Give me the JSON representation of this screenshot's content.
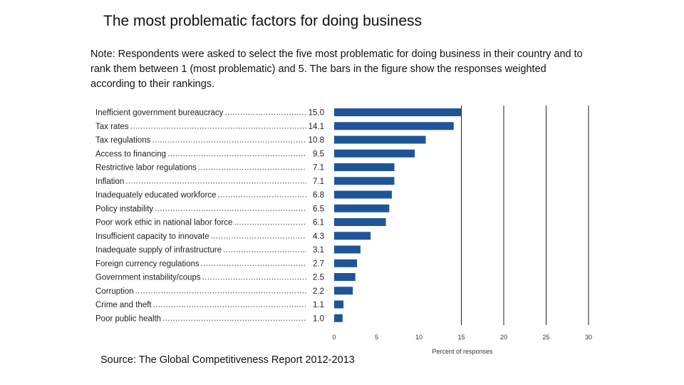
{
  "slide": {
    "title": "The most problematic factors for doing business",
    "note": "Note: Respondents were asked to select the five most problematic for doing business in their country and to rank them between 1 (most problematic) and 5. The bars in the figure show the responses weighted according to their rankings.",
    "source": "Source: The Global Competitiveness Report 2012-2013"
  },
  "chart_data": {
    "type": "bar",
    "orientation": "horizontal",
    "title": "",
    "xlabel": "Percent of responses",
    "ylabel": "",
    "xlim": [
      0,
      30
    ],
    "xticks": [
      0,
      5,
      10,
      15,
      20,
      25,
      30
    ],
    "grid": "vertical lines at 15, 20, 25, 30",
    "bar_color": "#1f5598",
    "categories": [
      "Inefficient government bureaucracy",
      "Tax rates",
      "Tax regulations",
      "Access to financing",
      "Restrictive labor regulations",
      "Inflation",
      "Inadequately educated workforce",
      "Policy instability",
      "Poor work ethic in national labor force",
      "Insufficient capacity to innovate",
      "Inadequate supply of infrastructure",
      "Foreign currency regulations",
      "Government instability/coups",
      "Corruption",
      "Crime and theft",
      "Poor public health"
    ],
    "values": [
      15.0,
      14.1,
      10.8,
      9.5,
      7.1,
      7.1,
      6.8,
      6.5,
      6.1,
      4.3,
      3.1,
      2.7,
      2.5,
      2.2,
      1.1,
      1.0
    ],
    "value_labels": [
      "15.0",
      "14.1",
      "10.8",
      "9.5",
      "7.1",
      "7.1",
      "6.8",
      "6.5",
      "6.1",
      "4.3",
      "3.1",
      "2.7",
      "2.5",
      "2.2",
      "1.1",
      "1.0"
    ]
  }
}
